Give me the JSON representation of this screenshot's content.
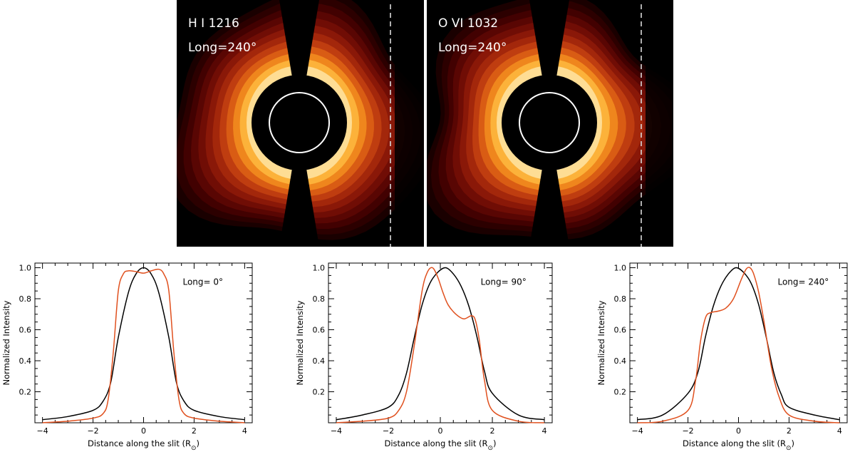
{
  "colors": {
    "background": "#000000",
    "limb_circle": "#ffffff",
    "slit_line": "#d9d9d9",
    "black_curve": "#000000",
    "red_curve": "#e0501e",
    "contour_levels": [
      "#1a0000",
      "#2c0000",
      "#420101",
      "#590603",
      "#700d05",
      "#8a1808",
      "#a3270b",
      "#bf3d10",
      "#d95c14",
      "#ef861d",
      "#fcb23a",
      "#fedd94"
    ]
  },
  "images": [
    {
      "line": "H I 1216",
      "longitude": "Long=240°"
    },
    {
      "line": "O VI 1032",
      "longitude": "Long=240°"
    }
  ],
  "chart_data": [
    {
      "type": "line",
      "xlabel": "Distance along the slit (R",
      "xlabel_sub": "⊙",
      "xlabel_close": ")",
      "ylabel": "Normalized Intensity",
      "annotation": "Long= 0°",
      "xlim": [
        -4.3,
        4.3
      ],
      "ylim": [
        0,
        1.03
      ],
      "xticks": [
        -4,
        -2,
        0,
        2,
        4
      ],
      "yticks": [
        0.2,
        0.4,
        0.6,
        0.8,
        1.0
      ],
      "series": [
        {
          "name": "black",
          "x": [
            -4,
            -3,
            -2,
            -1.6,
            -1.3,
            -1,
            -0.6,
            -0.3,
            0,
            0.3,
            0.6,
            1,
            1.3,
            1.6,
            2,
            3,
            4
          ],
          "y": [
            0.02,
            0.04,
            0.08,
            0.14,
            0.26,
            0.55,
            0.84,
            0.96,
            1.0,
            0.96,
            0.84,
            0.55,
            0.26,
            0.14,
            0.08,
            0.04,
            0.02
          ]
        },
        {
          "name": "red",
          "x": [
            -4,
            -3,
            -2,
            -1.6,
            -1.4,
            -1.2,
            -1.0,
            -0.8,
            -0.6,
            -0.3,
            0,
            0.3,
            0.6,
            0.8,
            1.0,
            1.2,
            1.4,
            1.6,
            2,
            3,
            4
          ],
          "y": [
            0.0,
            0.01,
            0.03,
            0.06,
            0.15,
            0.45,
            0.85,
            0.96,
            0.98,
            0.975,
            0.965,
            0.98,
            0.99,
            0.96,
            0.85,
            0.45,
            0.15,
            0.06,
            0.03,
            0.01,
            0.0
          ]
        }
      ]
    },
    {
      "type": "line",
      "xlabel": "Distance along the slit (R",
      "xlabel_sub": "⊙",
      "xlabel_close": ")",
      "ylabel": "Normalized Intensity",
      "annotation": "Long= 90°",
      "xlim": [
        -4.3,
        4.3
      ],
      "ylim": [
        0,
        1.03
      ],
      "xticks": [
        -4,
        -2,
        0,
        2,
        4
      ],
      "yticks": [
        0.2,
        0.4,
        0.6,
        0.8,
        1.0
      ],
      "series": [
        {
          "name": "black",
          "x": [
            -4,
            -3,
            -2,
            -1.6,
            -1.3,
            -1.0,
            -0.7,
            -0.4,
            -0.1,
            0.2,
            0.5,
            0.8,
            1.1,
            1.4,
            1.7,
            2,
            3,
            4
          ],
          "y": [
            0.02,
            0.05,
            0.1,
            0.18,
            0.32,
            0.55,
            0.76,
            0.9,
            0.97,
            1.0,
            0.96,
            0.88,
            0.75,
            0.56,
            0.33,
            0.19,
            0.05,
            0.02
          ]
        },
        {
          "name": "red",
          "x": [
            -4,
            -3,
            -2,
            -1.6,
            -1.3,
            -1.0,
            -0.7,
            -0.5,
            -0.3,
            -0.1,
            0.1,
            0.3,
            0.6,
            0.9,
            1.2,
            1.35,
            1.5,
            1.7,
            2,
            3,
            4
          ],
          "y": [
            0.0,
            0.01,
            0.03,
            0.08,
            0.2,
            0.5,
            0.85,
            0.97,
            1.0,
            0.94,
            0.84,
            0.76,
            0.7,
            0.67,
            0.69,
            0.66,
            0.53,
            0.27,
            0.08,
            0.01,
            0.0
          ]
        }
      ]
    },
    {
      "type": "line",
      "xlabel": "Distance along the slit (R",
      "xlabel_sub": "⊙",
      "xlabel_close": ")",
      "ylabel": "Normalized Intensity",
      "annotation": "Long= 240°",
      "xlim": [
        -4.3,
        4.3
      ],
      "ylim": [
        0,
        1.03
      ],
      "xticks": [
        -4,
        -2,
        0,
        2,
        4
      ],
      "yticks": [
        0.2,
        0.4,
        0.6,
        0.8,
        1.0
      ],
      "series": [
        {
          "name": "black",
          "x": [
            -4,
            -3,
            -2,
            -1.6,
            -1.3,
            -1.0,
            -0.7,
            -0.4,
            -0.1,
            0.2,
            0.5,
            0.8,
            1.1,
            1.4,
            1.7,
            2,
            3,
            4
          ],
          "y": [
            0.02,
            0.05,
            0.19,
            0.33,
            0.56,
            0.75,
            0.88,
            0.96,
            1.0,
            0.97,
            0.9,
            0.76,
            0.55,
            0.32,
            0.18,
            0.1,
            0.05,
            0.02
          ]
        },
        {
          "name": "red",
          "x": [
            -4,
            -3,
            -2,
            -1.7,
            -1.5,
            -1.3,
            -1.1,
            -0.8,
            -0.5,
            -0.2,
            0.1,
            0.3,
            0.45,
            0.6,
            0.8,
            1.0,
            1.3,
            1.6,
            2,
            3,
            4
          ],
          "y": [
            0.0,
            0.01,
            0.08,
            0.27,
            0.53,
            0.68,
            0.71,
            0.72,
            0.74,
            0.8,
            0.92,
            0.99,
            1.0,
            0.96,
            0.84,
            0.66,
            0.36,
            0.17,
            0.05,
            0.01,
            0.0
          ]
        }
      ]
    }
  ]
}
